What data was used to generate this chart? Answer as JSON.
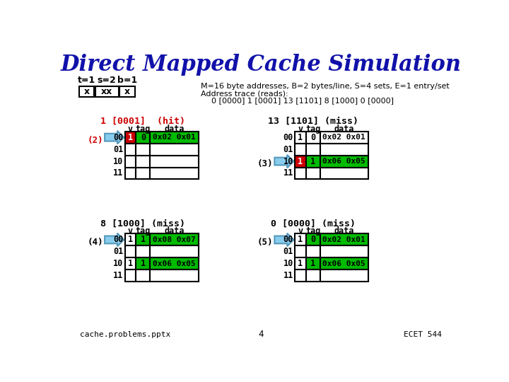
{
  "title": "Direct Mapped Cache Simulation",
  "title_color": "#1111AA",
  "bg_color": "#FFFFFF",
  "header_text": "M=16 byte addresses, B=2 bytes/line, S=4 sets, E=1 entry/set",
  "address_trace_label": "Address trace (reads):",
  "address_trace": "0 [0000] 1 [0001] 13 [1101] 8 [1000] 0 [0000]",
  "bit_label_t": "t=1",
  "bit_label_s": "s=2",
  "bit_label_b": "b=1",
  "bit_field_t": "x",
  "bit_field_s": "xx",
  "bit_field_b": "x",
  "sets": [
    "00",
    "01",
    "10",
    "11"
  ],
  "panels": [
    {
      "title": "1 [0001]  (hit)",
      "title_color": "#CC0000",
      "arrow_label": "(2)",
      "arrow_label_color": "#CC0000",
      "arrow_row": 0,
      "rows": [
        {
          "v": "1",
          "tag": "0",
          "data": "0x02 0x01",
          "v_bg": "#CC0000",
          "v_color": "white",
          "tag_bg": "#00BB00",
          "data_bg": "#00BB00"
        },
        {
          "v": "",
          "tag": "",
          "data": "",
          "v_bg": "white",
          "v_color": "black",
          "tag_bg": "white",
          "data_bg": "white"
        },
        {
          "v": "",
          "tag": "",
          "data": "",
          "v_bg": "white",
          "v_color": "black",
          "tag_bg": "white",
          "data_bg": "white"
        },
        {
          "v": "",
          "tag": "",
          "data": "",
          "v_bg": "white",
          "v_color": "black",
          "tag_bg": "white",
          "data_bg": "white"
        }
      ]
    },
    {
      "title": "13 [1101] (miss)",
      "title_color": "#000000",
      "arrow_label": "(3)",
      "arrow_label_color": "#000000",
      "arrow_row": 2,
      "rows": [
        {
          "v": "1",
          "tag": "0",
          "data": "0x02 0x01",
          "v_bg": "white",
          "v_color": "black",
          "tag_bg": "white",
          "data_bg": "white"
        },
        {
          "v": "",
          "tag": "",
          "data": "",
          "v_bg": "white",
          "v_color": "black",
          "tag_bg": "white",
          "data_bg": "white"
        },
        {
          "v": "1",
          "tag": "1",
          "data": "0x06 0x05",
          "v_bg": "#CC0000",
          "v_color": "white",
          "tag_bg": "#00BB00",
          "data_bg": "#00BB00"
        },
        {
          "v": "",
          "tag": "",
          "data": "",
          "v_bg": "white",
          "v_color": "black",
          "tag_bg": "white",
          "data_bg": "white"
        }
      ]
    },
    {
      "title": "8 [1000] (miss)",
      "title_color": "#000000",
      "arrow_label": "(4)",
      "arrow_label_color": "#000000",
      "arrow_row": 0,
      "rows": [
        {
          "v": "1",
          "tag": "1",
          "data": "0x08 0x07",
          "v_bg": "white",
          "v_color": "black",
          "tag_bg": "#00BB00",
          "data_bg": "#00BB00"
        },
        {
          "v": "",
          "tag": "",
          "data": "",
          "v_bg": "white",
          "v_color": "black",
          "tag_bg": "white",
          "data_bg": "white"
        },
        {
          "v": "1",
          "tag": "1",
          "data": "0x06 0x05",
          "v_bg": "white",
          "v_color": "black",
          "tag_bg": "#00BB00",
          "data_bg": "#00BB00"
        },
        {
          "v": "",
          "tag": "",
          "data": "",
          "v_bg": "white",
          "v_color": "black",
          "tag_bg": "white",
          "data_bg": "white"
        }
      ]
    },
    {
      "title": "0 [0000] (miss)",
      "title_color": "#000000",
      "arrow_label": "(5)",
      "arrow_label_color": "#000000",
      "arrow_row": 0,
      "rows": [
        {
          "v": "1",
          "tag": "0",
          "data": "0x02 0x01",
          "v_bg": "white",
          "v_color": "black",
          "tag_bg": "#00BB00",
          "data_bg": "#00BB00"
        },
        {
          "v": "",
          "tag": "",
          "data": "",
          "v_bg": "white",
          "v_color": "black",
          "tag_bg": "white",
          "data_bg": "white"
        },
        {
          "v": "1",
          "tag": "1",
          "data": "0x06 0x05",
          "v_bg": "white",
          "v_color": "black",
          "tag_bg": "#00BB00",
          "data_bg": "#00BB00"
        },
        {
          "v": "",
          "tag": "",
          "data": "",
          "v_bg": "white",
          "v_color": "black",
          "tag_bg": "white",
          "data_bg": "white"
        }
      ]
    }
  ]
}
